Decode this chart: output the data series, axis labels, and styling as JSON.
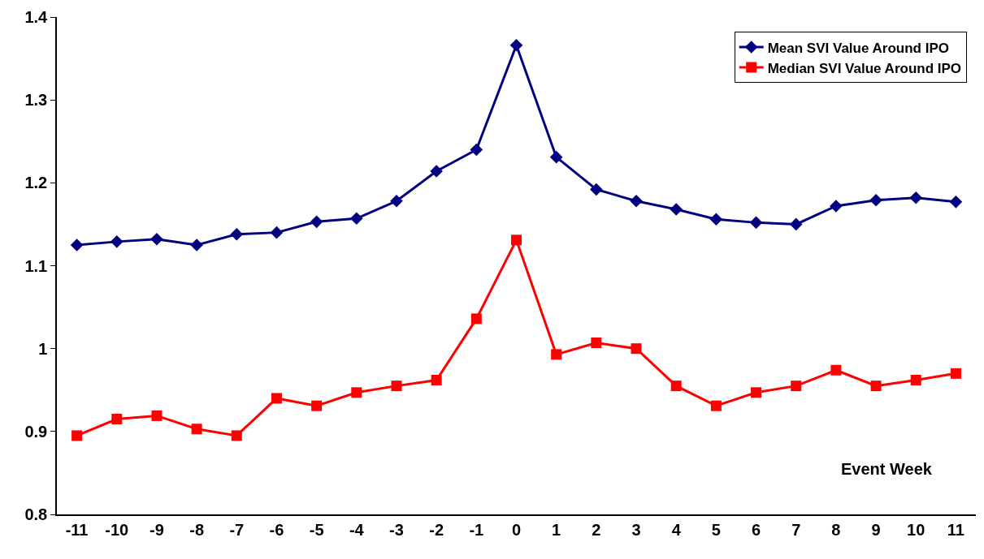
{
  "chart_data": {
    "type": "line",
    "xlabel": "Event Week",
    "categories": [
      "-11",
      "-10",
      "-9",
      "-8",
      "-7",
      "-6",
      "-5",
      "-4",
      "-3",
      "-2",
      "-1",
      "0",
      "1",
      "2",
      "3",
      "4",
      "5",
      "6",
      "7",
      "8",
      "9",
      "10",
      "11"
    ],
    "series": [
      {
        "name": "Mean SVI Value Around IPO",
        "color": "#000080",
        "marker": "diamond",
        "values": [
          1.125,
          1.129,
          1.132,
          1.125,
          1.138,
          1.14,
          1.153,
          1.157,
          1.178,
          1.214,
          1.24,
          1.366,
          1.231,
          1.192,
          1.178,
          1.168,
          1.156,
          1.152,
          1.15,
          1.172,
          1.179,
          1.182,
          1.177
        ]
      },
      {
        "name": "Median SVI Value Around IPO",
        "color": "#ff0000",
        "marker": "square",
        "values": [
          0.895,
          0.915,
          0.919,
          0.903,
          0.895,
          0.94,
          0.931,
          0.947,
          0.955,
          0.962,
          1.036,
          1.131,
          0.993,
          1.007,
          1.0,
          0.955,
          0.931,
          0.947,
          0.955,
          0.974,
          0.955,
          0.962,
          0.97
        ]
      }
    ],
    "ylim": [
      0.8,
      1.4
    ],
    "yticks": [
      0.8,
      0.9,
      1,
      1.1,
      1.2,
      1.3,
      1.4
    ],
    "legend": "top right",
    "line_style": "solid"
  }
}
